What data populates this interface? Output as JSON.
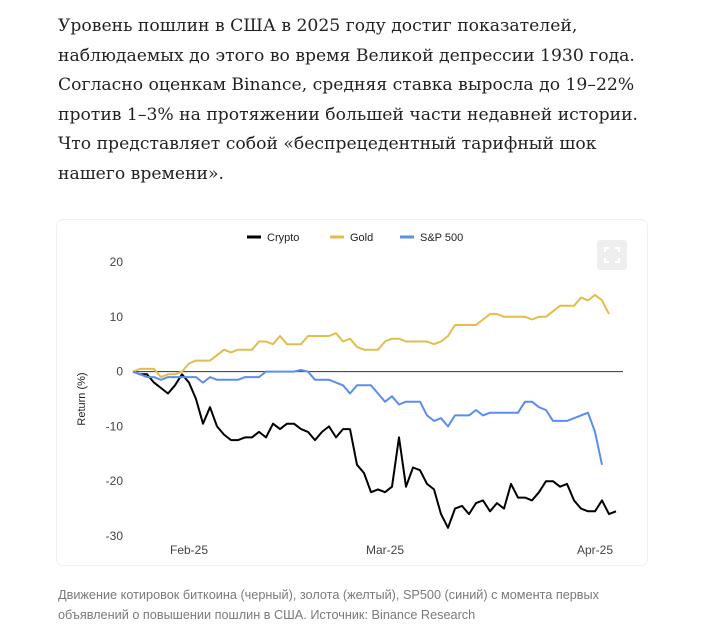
{
  "article": {
    "paragraph": "Уровень пошлин в США в 2025 году достиг показателей, наблюдаемых до этого во время Великой депрессии 1930 года. Согласно оценкам Binance, средняя ставка выросла до 19–22% против 1–3% на протяжении большей части недавней истории. Что представляет собой «беспрецедентный тарифный шок нашего времени»."
  },
  "caption": "Движение котировок биткоина (черный), золота (желтый), SP500 (синий) с момента первых объявлений о повышении пошлин в США. Источник: Binance Research",
  "chart_data": {
    "type": "line",
    "title": "",
    "xlabel": "",
    "ylabel": "Return (%)",
    "ylim": [
      -30,
      20
    ],
    "yticks": [
      "20",
      "10",
      "0",
      "-10",
      "-20",
      "-30"
    ],
    "xticks": [
      "Feb-25",
      "Mar-25",
      "Apr-25"
    ],
    "xlim_index": [
      0,
      70
    ],
    "xtick_index": [
      8,
      36,
      66
    ],
    "grid": false,
    "legend_position": "top",
    "series": [
      {
        "name": "Crypto",
        "color": "#000000",
        "values": [
          0,
          -0.5,
          -0.5,
          -2,
          -3,
          -4,
          -2.5,
          -0.5,
          -2,
          -5,
          -9.5,
          -6.5,
          -10,
          -11.5,
          -12.5,
          -12.5,
          -12,
          -12,
          -11,
          -12,
          -9.5,
          -10.5,
          -9.5,
          -9.5,
          -10.5,
          -11,
          -12.5,
          -11,
          -10,
          -12,
          -10.5,
          -10.5,
          -17,
          -18.5,
          -22,
          -21.5,
          -22,
          -21,
          -12,
          -21,
          -17.5,
          -18,
          -20.5,
          -21.5,
          -26,
          -28.5,
          -25,
          -24.5,
          -26,
          -24,
          -23.5,
          -25.5,
          -24,
          -25,
          -20.5,
          -23,
          -23,
          -23.5,
          -22,
          -20,
          -20,
          -21,
          -20.5,
          -23.5,
          -25,
          -25.5,
          -25.5,
          -23.5,
          -26,
          -25.5
        ]
      },
      {
        "name": "Gold",
        "color": "#e3bd4b",
        "values": [
          0,
          0.5,
          0.5,
          0.5,
          -1,
          -0.5,
          -0.5,
          0,
          1.5,
          2,
          2,
          2,
          3,
          4,
          3.5,
          4,
          4,
          4,
          5.5,
          5.5,
          5,
          6.5,
          5,
          5,
          5,
          6.5,
          6.5,
          6.5,
          6.5,
          7,
          5.5,
          6,
          4.5,
          4,
          4,
          4,
          5.5,
          6,
          6,
          5.5,
          5.5,
          5.5,
          5.5,
          5,
          5.5,
          6.5,
          8.5,
          8.5,
          8.5,
          8.5,
          9.5,
          10.5,
          10.5,
          10,
          10,
          10,
          10,
          9.5,
          10,
          10,
          11,
          12,
          12,
          12,
          13.5,
          13,
          14,
          13,
          10.5
        ]
      },
      {
        "name": "S&P 500",
        "color": "#5b8def",
        "values": [
          0,
          -0.5,
          -1,
          -1,
          -1.5,
          -1,
          -1,
          -1,
          -1,
          -1,
          -2,
          -1,
          -1.5,
          -1.5,
          -1.5,
          -1.5,
          -1,
          -1,
          -1,
          0,
          0,
          0,
          0,
          0,
          0.3,
          0,
          -1.5,
          -1.5,
          -1.5,
          -2,
          -2.5,
          -4,
          -2.5,
          -2.5,
          -2.5,
          -4,
          -5.5,
          -4.5,
          -6,
          -5.5,
          -5.5,
          -5.5,
          -8,
          -9,
          -8.5,
          -10,
          -8,
          -8,
          -8,
          -7,
          -8,
          -7.5,
          -7.5,
          -7.5,
          -7.5,
          -7.5,
          -5.5,
          -5.5,
          -6.5,
          -7,
          -9,
          -9,
          -9,
          -8.5,
          -8,
          -7.5,
          -11,
          -17
        ]
      }
    ]
  },
  "icons": {
    "expand": "expand-icon"
  }
}
